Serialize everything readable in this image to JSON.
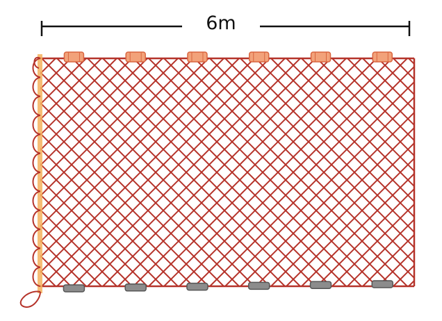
{
  "dimension": {
    "label": "6m"
  },
  "colors": {
    "net_line": "#b5332a",
    "float_fill": "#f2a27a",
    "float_stroke": "#d9653f",
    "sinker_fill": "#8c8c8c",
    "sinker_stroke": "#555555",
    "headrope_stake": "#f4b25e",
    "measure_line": "#111111"
  },
  "net": {
    "float_count": 6,
    "sinker_count": 6,
    "side_loop_count": 12
  }
}
